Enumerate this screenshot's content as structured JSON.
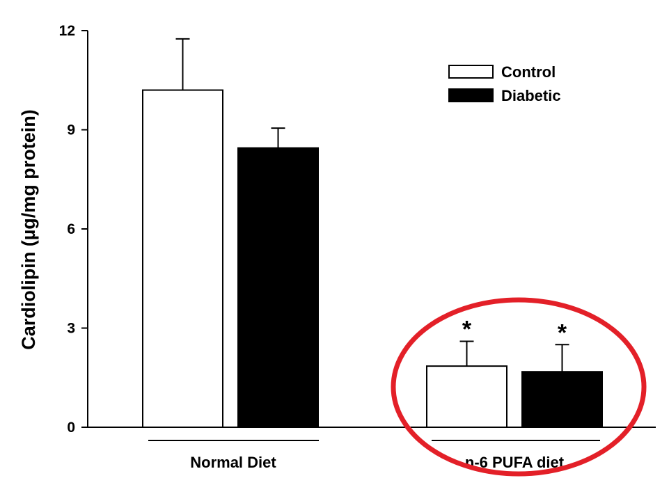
{
  "chart_data": {
    "type": "bar",
    "ylabel": "Cardiolipin (µg/mg protein)",
    "ylim": [
      0,
      12
    ],
    "yticks": [
      "0",
      "3",
      "6",
      "9",
      "12"
    ],
    "categories": [
      "Normal Diet",
      "n-6 PUFA diet"
    ],
    "series": [
      {
        "name": "Control",
        "values": [
          10.2,
          1.85
        ],
        "errors": [
          1.55,
          0.75
        ],
        "color": "#ffffff"
      },
      {
        "name": "Diabetic",
        "values": [
          8.45,
          1.68
        ],
        "errors": [
          0.6,
          0.82
        ],
        "color": "#000000"
      }
    ],
    "annotations": [
      {
        "series": 0,
        "category": 1,
        "text": "*"
      },
      {
        "series": 1,
        "category": 1,
        "text": "*"
      }
    ],
    "highlight": {
      "category": 1,
      "color": "#e32028"
    },
    "legend": "top-right"
  }
}
